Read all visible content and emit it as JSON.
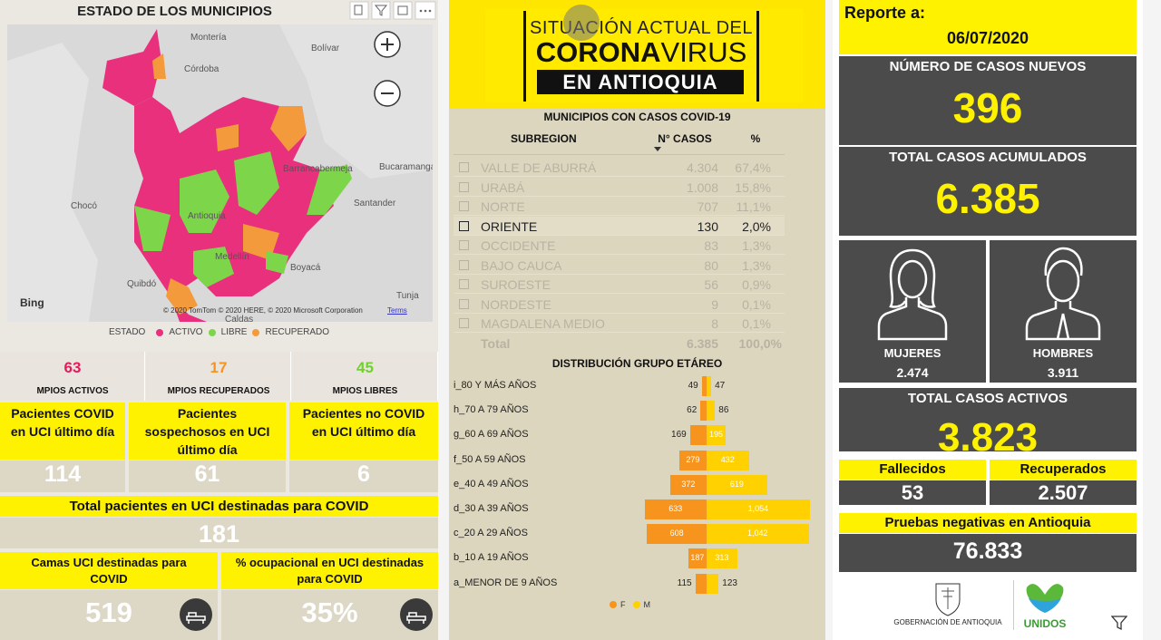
{
  "municipalities_panel": {
    "title": "ESTADO DE LOS MUNICIPIOS",
    "map_labels": [
      "Montería",
      "Córdoba",
      "Bolívar",
      "Bucaramanga",
      "Barrancabermeja",
      "Chocó",
      "Santander",
      "Antioquia",
      "Medellín",
      "Boyacá",
      "Quibdó",
      "Tunja",
      "Caldas"
    ],
    "map_brand": "Bing",
    "map_attribution": "© 2020 TomTom © 2020 HERE, © 2020 Microsoft Corporation",
    "map_terms": "Terms",
    "legend": {
      "title": "ESTADO",
      "items": [
        {
          "label": "ACTIVO",
          "color": "#e8307d"
        },
        {
          "label": "LIBRE",
          "color": "#7dd64a"
        },
        {
          "label": "RECUPERADO",
          "color": "#f39a3c"
        }
      ]
    },
    "counts": [
      {
        "value": "63",
        "label": "MPIOS ACTIVOS",
        "color": "#e6195a"
      },
      {
        "value": "17",
        "label": "MPIOS RECUPERADOS",
        "color": "#f7941d"
      },
      {
        "value": "45",
        "label": "MPIOS LIBRES",
        "color": "#6fd12b"
      }
    ]
  },
  "icu": {
    "cards": [
      {
        "title": "Pacientes COVID en UCI último día",
        "value": "114"
      },
      {
        "title": "Pacientes sospechosos en UCI último día",
        "value": "61"
      },
      {
        "title": "Pacientes no COVID en UCI último día",
        "value": "6"
      }
    ],
    "total": {
      "title": "Total pacientes en UCI destinadas para COVID",
      "value": "181"
    },
    "beds": [
      {
        "title": "Camas UCI destinadas para COVID",
        "value": "519"
      },
      {
        "title": "% ocupacional en UCI destinadas para COVID",
        "value": "35%"
      }
    ]
  },
  "banner": {
    "line1": "SITUACIÓN ACTUAL DEL",
    "corona": "CORONA",
    "virus": "VIRUS",
    "line3": "EN ANTIOQUIA"
  },
  "cases_table": {
    "title": "MUNICIPIOS CON CASOS COVID-19",
    "header": [
      "SUBREGION",
      "N° CASOS",
      "%"
    ],
    "rows": [
      [
        "VALLE DE ABURRÁ",
        "4.304",
        "67,4%"
      ],
      [
        "URABÁ",
        "1.008",
        "15,8%"
      ],
      [
        "NORTE",
        "707",
        "11,1%"
      ],
      [
        "ORIENTE",
        "130",
        "2,0%"
      ],
      [
        "OCCIDENTE",
        "83",
        "1,3%"
      ],
      [
        "BAJO CAUCA",
        "80",
        "1,3%"
      ],
      [
        "SUROESTE",
        "56",
        "0,9%"
      ],
      [
        "NORDESTE",
        "9",
        "0,1%"
      ],
      [
        "MAGDALENA MEDIO",
        "8",
        "0,1%"
      ]
    ],
    "total": [
      "Total",
      "6.385",
      "100,0%"
    ]
  },
  "age_distribution": {
    "type": "bar",
    "title": "DISTRIBUCIÓN GRUPO ETÁREO",
    "categories": [
      "i_80 Y MÁS AÑOS",
      "h_70 A 79 AÑOS",
      "g_60 A 69 AÑOS",
      "f_50 A 59 AÑOS",
      "e_40 A 49 AÑOS",
      "d_30 A 39 AÑOS",
      "c_20 A 29 AÑOS",
      "b_10 A 19 AÑOS",
      "a_MENOR DE 9 AÑOS"
    ],
    "series": [
      {
        "name": "F",
        "color": "#f7941d",
        "values": [
          49,
          62,
          169,
          279,
          372,
          633,
          608,
          187,
          115
        ]
      },
      {
        "name": "M",
        "color": "#ffd100",
        "values": [
          47,
          86,
          195,
          432,
          619,
          1054,
          1042,
          313,
          123
        ],
        "value_labels": [
          "47",
          "86",
          "195",
          "432",
          "619",
          "1,054",
          "1,042",
          "313",
          "123"
        ]
      }
    ]
  },
  "report": {
    "label": "Reporte a:",
    "date": "06/07/2020",
    "new_cases": {
      "title": "NÚMERO DE CASOS NUEVOS",
      "value": "396"
    },
    "total_cases": {
      "title": "TOTAL CASOS ACUMULADOS",
      "value": "6.385"
    },
    "women": {
      "title": "MUJERES",
      "value": "2.474"
    },
    "men": {
      "title": "HOMBRES",
      "value": "3.911"
    },
    "active": {
      "title": "TOTAL CASOS ACTIVOS",
      "value": "3.823"
    },
    "deaths": {
      "title": "Fallecidos",
      "value": "53"
    },
    "recovered": {
      "title": "Recuperados",
      "value": "2.507"
    },
    "negative_tests": {
      "title": "Pruebas negativas en Antioquia",
      "value": "76.833"
    },
    "logo_government": "GOBERNACIÓN DE ANTIOQUIA",
    "logo_unidos": "UNIDOS"
  }
}
